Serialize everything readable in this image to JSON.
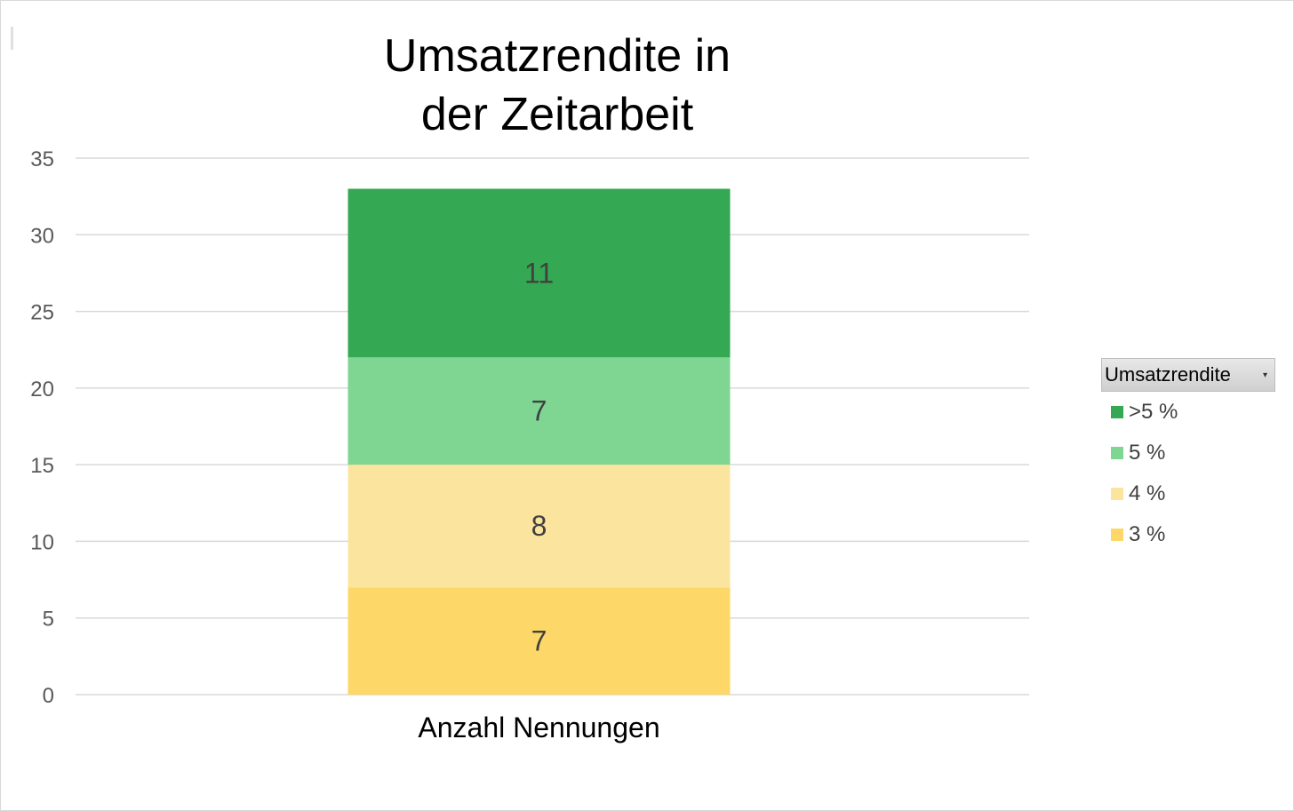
{
  "chart_data": {
    "type": "bar",
    "stacked": true,
    "title": "Umsatzrendite in der Zeitarbeit",
    "title_lines": [
      "Umsatzrendite in",
      "der Zeitarbeit"
    ],
    "categories": [
      "Anzahl Nennungen"
    ],
    "series": [
      {
        "name": "3 %",
        "values": [
          7
        ],
        "color": "#fdd868"
      },
      {
        "name": "4 %",
        "values": [
          8
        ],
        "color": "#fbe59e"
      },
      {
        "name": "5 %",
        "values": [
          7
        ],
        "color": "#7fd693"
      },
      {
        "name": ">5 %",
        "values": [
          11
        ],
        "color": "#34a853"
      }
    ],
    "ylim": [
      0,
      35
    ],
    "yticks": [
      0,
      5,
      10,
      15,
      20,
      25,
      30,
      35
    ],
    "grid": true,
    "legend": {
      "title": "Umsatzrendite",
      "placement": "right"
    }
  },
  "icons": {
    "legend_filter": "dropdown-arrow-icon"
  }
}
